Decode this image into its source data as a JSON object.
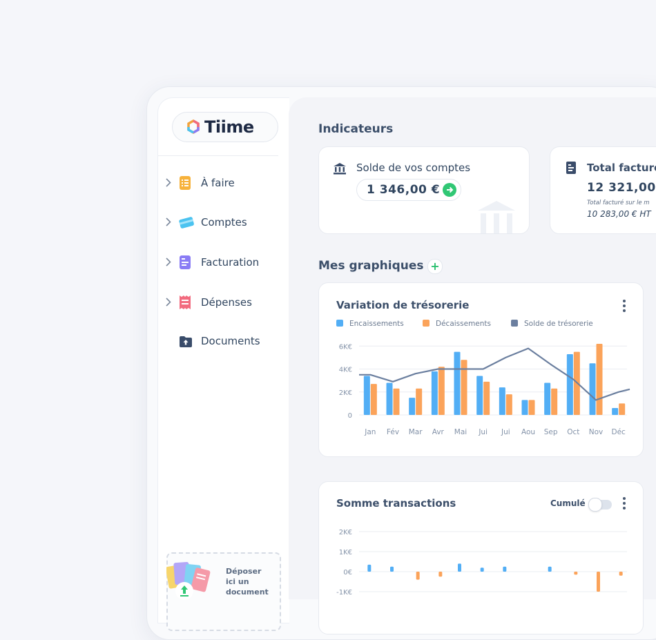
{
  "app": {
    "name": "Tiime"
  },
  "sidebar": {
    "items": [
      {
        "label": "À faire",
        "icon": "todo-list-icon",
        "color": "#f7b23b"
      },
      {
        "label": "Comptes",
        "icon": "card-icon",
        "color": "#4cc3f0"
      },
      {
        "label": "Facturation",
        "icon": "invoice-icon",
        "color": "#8a7cf5"
      },
      {
        "label": "Dépenses",
        "icon": "receipt-icon",
        "color": "#f26b7f"
      },
      {
        "label": "Documents",
        "icon": "folder-upload-icon",
        "color": "#3a4c6a"
      }
    ],
    "dropzone": {
      "line1": "Déposer",
      "line2": "ici un",
      "line3": "document"
    }
  },
  "indicators": {
    "title": "Indicateurs",
    "balance": {
      "label": "Solde de vos comptes",
      "amount": "1 346,00 €"
    },
    "invoiced": {
      "label": "Total facturé",
      "amount": "12 321,00",
      "sub": "Total facturé sur le m",
      "sub_amount": "10 283,00 € HT"
    }
  },
  "graphs": {
    "title": "Mes graphiques"
  },
  "chart_data": [
    {
      "type": "bar",
      "title": "Variation de trésorerie",
      "categories": [
        "Jan",
        "Fév",
        "Mar",
        "Avr",
        "Mai",
        "Jui",
        "Jui",
        "Aou",
        "Sep",
        "Oct",
        "Nov",
        "Déc"
      ],
      "yticks": [
        "6K€",
        "4K€",
        "2K€",
        "0"
      ],
      "ylim": [
        0,
        6500
      ],
      "series": [
        {
          "name": "Encaissements",
          "kind": "bar",
          "color": "#52aef5",
          "values": [
            3400,
            2800,
            1500,
            3800,
            5500,
            3400,
            2400,
            1300,
            2800,
            5300,
            4500,
            600
          ]
        },
        {
          "name": "Décaissements",
          "kind": "bar",
          "color": "#fba35a",
          "values": [
            2700,
            2300,
            2300,
            4200,
            4800,
            2900,
            1800,
            1300,
            2300,
            5500,
            6200,
            1000
          ]
        },
        {
          "name": "Solde de trésorerie",
          "kind": "line",
          "color": "#6b7f9f",
          "values": [
            3500,
            2900,
            3600,
            4000,
            4000,
            4000,
            5000,
            5800,
            4400,
            3100,
            1300,
            2000
          ]
        }
      ]
    },
    {
      "type": "bar",
      "title": "Somme transactions",
      "toggle_label": "Cumulé",
      "yticks": [
        "2K€",
        "1K€",
        "0€",
        "-1K€"
      ],
      "ylim": [
        -1000,
        2000
      ],
      "series": [
        {
          "name": "Encaissements",
          "color": "#52aef5",
          "values": [
            350,
            250,
            0,
            0,
            400,
            200,
            250,
            0,
            250,
            0,
            0,
            0
          ]
        },
        {
          "name": "Décaissements",
          "color": "#fba35a",
          "values": [
            0,
            0,
            -400,
            -250,
            0,
            0,
            0,
            0,
            0,
            -150,
            -1000,
            -200
          ]
        }
      ]
    }
  ]
}
